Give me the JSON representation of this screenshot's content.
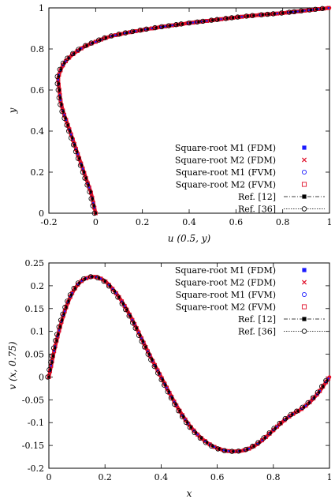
{
  "chart_data": [
    {
      "type": "line",
      "xlabel": "u (0.5, y)",
      "ylabel": "y",
      "xlim": [
        -0.2,
        1
      ],
      "ylim": [
        0,
        1
      ],
      "xticks": [
        "-0.2",
        "0",
        "0.2",
        "0.4",
        "0.6",
        "0.8",
        "1"
      ],
      "yticks": [
        "0",
        "0.2",
        "0.4",
        "0.6",
        "0.8",
        "1"
      ],
      "xtick_values": [
        -0.2,
        0,
        0.2,
        0.4,
        0.6,
        0.8,
        1
      ],
      "ytick_values": [
        0,
        0.2,
        0.4,
        0.6,
        0.8,
        1
      ],
      "legend_position": "bottom-right",
      "series": [
        {
          "name": "Square-root M1 (FDM)",
          "marker": "filled-square",
          "color": "#1a1aff"
        },
        {
          "name": "Square-root M2 (FDM)",
          "marker": "cross",
          "color": "#e0102a"
        },
        {
          "name": "Square-root M1 (FVM)",
          "marker": "open-circle",
          "color": "#1a1aff"
        },
        {
          "name": "Square-root M2 (FVM)",
          "marker": "open-square",
          "color": "#e0102a"
        },
        {
          "name": "Ref. [12]",
          "marker": "filled-square-line",
          "color": "#000000"
        },
        {
          "name": "Ref. [36]",
          "marker": "open-circle-line",
          "color": "#000000"
        }
      ],
      "curve": {
        "x": [
          0,
          -0.01,
          -0.02,
          -0.035,
          -0.05,
          -0.065,
          -0.08,
          -0.095,
          -0.11,
          -0.125,
          -0.14,
          -0.15,
          -0.155,
          -0.16,
          -0.155,
          -0.14,
          -0.12,
          -0.09,
          -0.05,
          0.0,
          0.06,
          0.14,
          0.24,
          0.36,
          0.5,
          0.65,
          0.8,
          0.92,
          1.0
        ],
        "y": [
          0,
          0.05,
          0.1,
          0.15,
          0.2,
          0.25,
          0.3,
          0.35,
          0.4,
          0.45,
          0.5,
          0.55,
          0.6,
          0.65,
          0.68,
          0.72,
          0.75,
          0.78,
          0.81,
          0.835,
          0.86,
          0.88,
          0.9,
          0.92,
          0.94,
          0.96,
          0.975,
          0.99,
          1.0
        ]
      }
    },
    {
      "type": "line",
      "xlabel": "x",
      "ylabel": "v (x, 0.75)",
      "xlim": [
        0,
        1
      ],
      "ylim": [
        -0.2,
        0.25
      ],
      "xticks": [
        "0",
        "0.2",
        "0.4",
        "0.6",
        "0.8",
        "1"
      ],
      "yticks": [
        "-0.2",
        "-0.15",
        "-0.1",
        "-0.05",
        "0",
        "0.05",
        "0.1",
        "0.15",
        "0.2",
        "0.25"
      ],
      "xtick_values": [
        0,
        0.2,
        0.4,
        0.6,
        0.8,
        1
      ],
      "ytick_values": [
        -0.2,
        -0.15,
        -0.1,
        -0.05,
        0,
        0.05,
        0.1,
        0.15,
        0.2,
        0.25
      ],
      "legend_position": "top-right",
      "series": [
        {
          "name": "Square-root M1 (FDM)",
          "marker": "filled-square",
          "color": "#1a1aff"
        },
        {
          "name": "Square-root M2 (FDM)",
          "marker": "cross",
          "color": "#e0102a"
        },
        {
          "name": "Square-root M1 (FVM)",
          "marker": "open-circle",
          "color": "#1a1aff"
        },
        {
          "name": "Square-root M2 (FVM)",
          "marker": "open-square",
          "color": "#e0102a"
        },
        {
          "name": "Ref. [12]",
          "marker": "filled-square-line",
          "color": "#000000"
        },
        {
          "name": "Ref. [36]",
          "marker": "open-circle-line",
          "color": "#000000"
        }
      ],
      "curve": {
        "x": [
          0,
          0.01,
          0.02,
          0.04,
          0.06,
          0.08,
          0.1,
          0.12,
          0.14,
          0.16,
          0.18,
          0.2,
          0.22,
          0.25,
          0.28,
          0.31,
          0.34,
          0.37,
          0.4,
          0.43,
          0.46,
          0.5,
          0.54,
          0.58,
          0.62,
          0.66,
          0.7,
          0.74,
          0.78,
          0.82,
          0.86,
          0.9,
          0.93,
          0.96,
          0.98,
          1.0
        ],
        "y": [
          0,
          0.03,
          0.06,
          0.11,
          0.15,
          0.18,
          0.2,
          0.212,
          0.218,
          0.22,
          0.217,
          0.21,
          0.198,
          0.175,
          0.145,
          0.11,
          0.072,
          0.035,
          0.0,
          -0.035,
          -0.068,
          -0.105,
          -0.132,
          -0.15,
          -0.16,
          -0.163,
          -0.16,
          -0.148,
          -0.128,
          -0.105,
          -0.085,
          -0.07,
          -0.055,
          -0.035,
          -0.018,
          0.0
        ]
      }
    }
  ]
}
